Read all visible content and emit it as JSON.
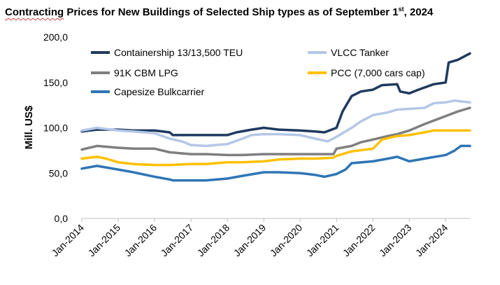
{
  "title": {
    "part1": "Contracting",
    "part2": " Prices for New Buildings of Selected Ship types as of September 1",
    "superscript": "st",
    "part3": ", 2024"
  },
  "chart_data": {
    "type": "line",
    "ylabel": "Mill. US$",
    "xlabel": "",
    "ylim": [
      0,
      200
    ],
    "yticks": [
      "0,0",
      "50,0",
      "100,0",
      "150,0",
      "200,0"
    ],
    "xticks": [
      "Jan-2014",
      "Jan-2015",
      "Jan-2016",
      "Jan-2017",
      "Jan-2018",
      "Jan-2019",
      "Jan-2020",
      "Jan-2021",
      "Jan-2022",
      "Jan-2023",
      "Jan-2024"
    ],
    "xrange": [
      "2014-01",
      "2024-09"
    ],
    "grid": false,
    "legend_position": "top",
    "series": [
      {
        "name": "Containership 13/13,500 TEU",
        "color": "#1f3a5f",
        "points": [
          [
            "2014-01",
            96
          ],
          [
            "2014-06",
            98
          ],
          [
            "2015-01",
            98
          ],
          [
            "2015-06",
            97
          ],
          [
            "2016-01",
            97
          ],
          [
            "2016-06",
            95
          ],
          [
            "2016-07",
            92
          ],
          [
            "2017-01",
            92
          ],
          [
            "2017-06",
            92
          ],
          [
            "2018-01",
            92
          ],
          [
            "2018-04",
            95
          ],
          [
            "2018-09",
            98
          ],
          [
            "2019-01",
            100
          ],
          [
            "2019-06",
            98
          ],
          [
            "2020-01",
            97
          ],
          [
            "2020-06",
            96
          ],
          [
            "2020-09",
            95
          ],
          [
            "2021-01",
            100
          ],
          [
            "2021-03",
            118
          ],
          [
            "2021-06",
            135
          ],
          [
            "2021-09",
            140
          ],
          [
            "2022-01",
            142
          ],
          [
            "2022-04",
            147
          ],
          [
            "2022-09",
            148
          ],
          [
            "2022-10",
            140
          ],
          [
            "2023-01",
            138
          ],
          [
            "2023-04",
            142
          ],
          [
            "2023-09",
            148
          ],
          [
            "2024-01",
            150
          ],
          [
            "2024-02",
            172
          ],
          [
            "2024-05",
            175
          ],
          [
            "2024-09",
            182
          ]
        ]
      },
      {
        "name": "VLCC Tanker",
        "color": "#b4c7e7",
        "points": [
          [
            "2014-01",
            97
          ],
          [
            "2014-06",
            100
          ],
          [
            "2015-01",
            97
          ],
          [
            "2015-06",
            96
          ],
          [
            "2016-01",
            94
          ],
          [
            "2016-06",
            88
          ],
          [
            "2016-10",
            85
          ],
          [
            "2017-01",
            81
          ],
          [
            "2017-06",
            80
          ],
          [
            "2018-01",
            82
          ],
          [
            "2018-06",
            88
          ],
          [
            "2018-09",
            92
          ],
          [
            "2019-01",
            93
          ],
          [
            "2019-06",
            93
          ],
          [
            "2020-01",
            92
          ],
          [
            "2020-06",
            88
          ],
          [
            "2020-10",
            85
          ],
          [
            "2021-01",
            90
          ],
          [
            "2021-06",
            100
          ],
          [
            "2021-09",
            107
          ],
          [
            "2022-01",
            114
          ],
          [
            "2022-06",
            117
          ],
          [
            "2022-09",
            120
          ],
          [
            "2023-06",
            122
          ],
          [
            "2023-09",
            127
          ],
          [
            "2024-01",
            128
          ],
          [
            "2024-04",
            130
          ],
          [
            "2024-09",
            128
          ]
        ]
      },
      {
        "name": "91K CBM LPG",
        "color": "#7f7f7f",
        "points": [
          [
            "2014-01",
            76
          ],
          [
            "2014-06",
            80
          ],
          [
            "2015-01",
            78
          ],
          [
            "2015-06",
            77
          ],
          [
            "2016-01",
            77
          ],
          [
            "2016-06",
            73
          ],
          [
            "2017-01",
            71
          ],
          [
            "2017-06",
            71
          ],
          [
            "2018-01",
            70
          ],
          [
            "2018-06",
            70
          ],
          [
            "2019-01",
            71
          ],
          [
            "2019-06",
            71
          ],
          [
            "2020-01",
            71
          ],
          [
            "2020-06",
            71
          ],
          [
            "2020-12",
            71
          ],
          [
            "2021-01",
            77
          ],
          [
            "2021-06",
            80
          ],
          [
            "2021-09",
            84
          ],
          [
            "2022-01",
            87
          ],
          [
            "2022-06",
            91
          ],
          [
            "2022-09",
            93
          ],
          [
            "2023-01",
            97
          ],
          [
            "2023-06",
            104
          ],
          [
            "2024-01",
            113
          ],
          [
            "2024-05",
            118
          ],
          [
            "2024-09",
            122
          ]
        ]
      },
      {
        "name": "PCC (7,000 cars cap)",
        "color": "#ffc000",
        "points": [
          [
            "2014-01",
            66
          ],
          [
            "2014-06",
            68
          ],
          [
            "2014-09",
            66
          ],
          [
            "2015-01",
            62
          ],
          [
            "2015-06",
            60
          ],
          [
            "2016-01",
            59
          ],
          [
            "2016-06",
            59
          ],
          [
            "2017-01",
            60
          ],
          [
            "2017-06",
            60
          ],
          [
            "2018-01",
            62
          ],
          [
            "2018-06",
            62
          ],
          [
            "2019-01",
            63
          ],
          [
            "2019-06",
            65
          ],
          [
            "2020-01",
            66
          ],
          [
            "2020-06",
            66
          ],
          [
            "2020-12",
            67
          ],
          [
            "2021-01",
            69
          ],
          [
            "2021-06",
            74
          ],
          [
            "2022-01",
            77
          ],
          [
            "2022-04",
            87
          ],
          [
            "2022-09",
            91
          ],
          [
            "2023-01",
            92
          ],
          [
            "2023-06",
            95
          ],
          [
            "2023-09",
            97
          ],
          [
            "2024-01",
            97
          ],
          [
            "2024-09",
            97
          ]
        ]
      },
      {
        "name": "Capesize Bulkcarrier",
        "color": "#2e75b6",
        "points": [
          [
            "2014-01",
            55
          ],
          [
            "2014-06",
            58
          ],
          [
            "2015-01",
            54
          ],
          [
            "2015-06",
            51
          ],
          [
            "2016-01",
            46
          ],
          [
            "2016-06",
            43
          ],
          [
            "2016-07",
            42
          ],
          [
            "2017-01",
            42
          ],
          [
            "2017-06",
            42
          ],
          [
            "2018-01",
            44
          ],
          [
            "2018-06",
            47
          ],
          [
            "2019-01",
            51
          ],
          [
            "2019-06",
            51
          ],
          [
            "2020-01",
            50
          ],
          [
            "2020-06",
            48
          ],
          [
            "2020-09",
            46
          ],
          [
            "2021-01",
            49
          ],
          [
            "2021-04",
            54
          ],
          [
            "2021-06",
            61
          ],
          [
            "2022-01",
            63
          ],
          [
            "2022-06",
            66
          ],
          [
            "2022-09",
            68
          ],
          [
            "2023-01",
            63
          ],
          [
            "2023-06",
            66
          ],
          [
            "2024-01",
            70
          ],
          [
            "2024-04",
            75
          ],
          [
            "2024-06",
            80
          ],
          [
            "2024-09",
            80
          ]
        ]
      }
    ]
  }
}
